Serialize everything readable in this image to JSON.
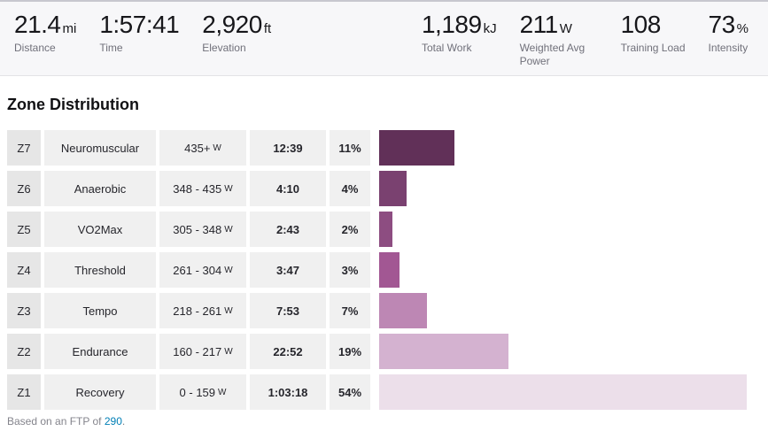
{
  "statsbar": {
    "stats": [
      {
        "value": "21.4",
        "unit": "mi",
        "label": "Distance"
      },
      {
        "value": "1:57:41",
        "unit": "",
        "label": "Time"
      },
      {
        "value": "2,920",
        "unit": "ft",
        "label": "Elevation"
      },
      {
        "value": "1,189",
        "unit": "kJ",
        "label": "Total Work"
      },
      {
        "value": "211",
        "unit": "W",
        "label": "Weighted Avg Power"
      },
      {
        "value": "108",
        "unit": "",
        "label": "Training Load"
      },
      {
        "value": "73",
        "unit": "%",
        "label": "Intensity"
      }
    ]
  },
  "section": {
    "title": "Zone Distribution"
  },
  "zones": [
    {
      "zone": "Z7",
      "name": "Neuromuscular",
      "range": "435+",
      "range_unit": "W",
      "time": "12:39",
      "pct_label": "11%",
      "pct": 11,
      "color": "#613058"
    },
    {
      "zone": "Z6",
      "name": "Anaerobic",
      "range": "348 - 435",
      "range_unit": "W",
      "time": "4:10",
      "pct_label": "4%",
      "pct": 4,
      "color": "#7a4170"
    },
    {
      "zone": "Z5",
      "name": "VO2Max",
      "range": "305 - 348",
      "range_unit": "W",
      "time": "2:43",
      "pct_label": "2%",
      "pct": 2,
      "color": "#8d4d81"
    },
    {
      "zone": "Z4",
      "name": "Threshold",
      "range": "261 - 304",
      "range_unit": "W",
      "time": "3:47",
      "pct_label": "3%",
      "pct": 3,
      "color": "#a25793"
    },
    {
      "zone": "Z3",
      "name": "Tempo",
      "range": "218 - 261",
      "range_unit": "W",
      "time": "7:53",
      "pct_label": "7%",
      "pct": 7,
      "color": "#bd87b4"
    },
    {
      "zone": "Z2",
      "name": "Endurance",
      "range": "160 - 217",
      "range_unit": "W",
      "time": "22:52",
      "pct_label": "19%",
      "pct": 19,
      "color": "#d4b2d0"
    },
    {
      "zone": "Z1",
      "name": "Recovery",
      "range": "0 - 159",
      "range_unit": "W",
      "time": "1:03:18",
      "pct_label": "54%",
      "pct": 54,
      "color": "#ecdfea"
    }
  ],
  "chart_max_pct": 54,
  "footer": {
    "prefix": "Based on an FTP of ",
    "ftp_link": "290",
    "suffix": "."
  },
  "colors": {
    "statsbar_bg": "#f7f7f9",
    "zone_cell_bg": "#e6e6e6",
    "data_cell_bg": "#f0f0f0",
    "link_blue": "#007fb6"
  }
}
